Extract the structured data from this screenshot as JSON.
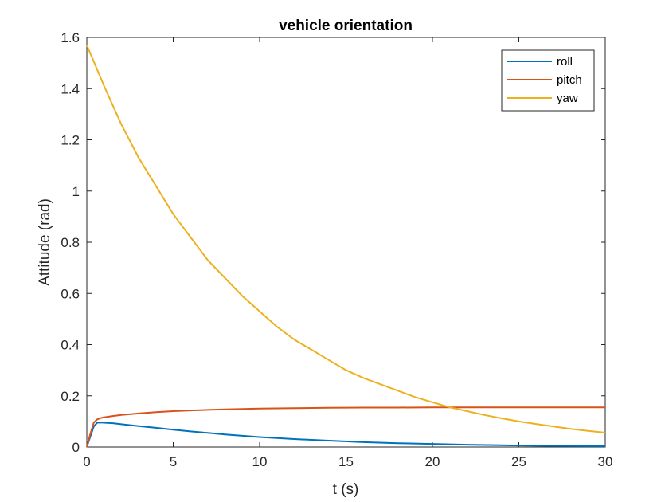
{
  "chart_data": {
    "type": "line",
    "title": "vehicle orientation",
    "xlabel": "t (s)",
    "ylabel": "Attitude (rad)",
    "xlim": [
      0,
      30
    ],
    "ylim": [
      0,
      1.6
    ],
    "xticks": [
      0,
      5,
      10,
      15,
      20,
      25,
      30
    ],
    "yticks": [
      0,
      0.2,
      0.4,
      0.6,
      0.8,
      1,
      1.2,
      1.4,
      1.6
    ],
    "xtick_labels": [
      "0",
      "5",
      "10",
      "15",
      "20",
      "25",
      "30"
    ],
    "ytick_labels": [
      "0",
      "0.2",
      "0.4",
      "0.6",
      "0.8",
      "1",
      "1.2",
      "1.4",
      "1.6"
    ],
    "grid": false,
    "legend_position": "top-right",
    "series": [
      {
        "name": "roll",
        "color": "#0072BD",
        "x": [
          0,
          0.2,
          0.4,
          0.6,
          0.8,
          1,
          1.5,
          2,
          3,
          4,
          5,
          6,
          7,
          8,
          9,
          10,
          12,
          14,
          16,
          18,
          20,
          22,
          24,
          26,
          28,
          30
        ],
        "y": [
          0,
          0.04,
          0.08,
          0.095,
          0.096,
          0.095,
          0.093,
          0.089,
          0.082,
          0.075,
          0.068,
          0.061,
          0.055,
          0.049,
          0.044,
          0.039,
          0.031,
          0.025,
          0.019,
          0.015,
          0.012,
          0.009,
          0.007,
          0.005,
          0.004,
          0.003
        ]
      },
      {
        "name": "pitch",
        "color": "#D95319",
        "x": [
          0,
          0.2,
          0.4,
          0.6,
          0.8,
          1,
          1.5,
          2,
          3,
          4,
          5,
          6,
          7,
          8,
          10,
          12,
          14,
          16,
          18,
          20,
          22,
          24,
          26,
          28,
          30
        ],
        "y": [
          0,
          0.05,
          0.095,
          0.108,
          0.113,
          0.116,
          0.121,
          0.125,
          0.131,
          0.136,
          0.14,
          0.143,
          0.145,
          0.147,
          0.15,
          0.152,
          0.153,
          0.154,
          0.154,
          0.155,
          0.155,
          0.155,
          0.155,
          0.155,
          0.155
        ]
      },
      {
        "name": "yaw",
        "color": "#EDB120",
        "x": [
          0,
          1,
          2,
          3,
          4,
          5,
          6,
          7,
          8,
          9,
          10,
          11,
          12,
          13,
          14,
          15,
          16,
          17,
          18,
          19,
          20,
          21,
          22,
          23,
          24,
          25,
          26,
          27,
          28,
          29,
          30
        ],
        "y": [
          1.57,
          1.41,
          1.26,
          1.13,
          1.02,
          0.91,
          0.82,
          0.73,
          0.66,
          0.59,
          0.53,
          0.47,
          0.42,
          0.38,
          0.34,
          0.3,
          0.27,
          0.245,
          0.22,
          0.195,
          0.175,
          0.155,
          0.14,
          0.125,
          0.112,
          0.1,
          0.09,
          0.08,
          0.071,
          0.063,
          0.056
        ]
      }
    ]
  }
}
